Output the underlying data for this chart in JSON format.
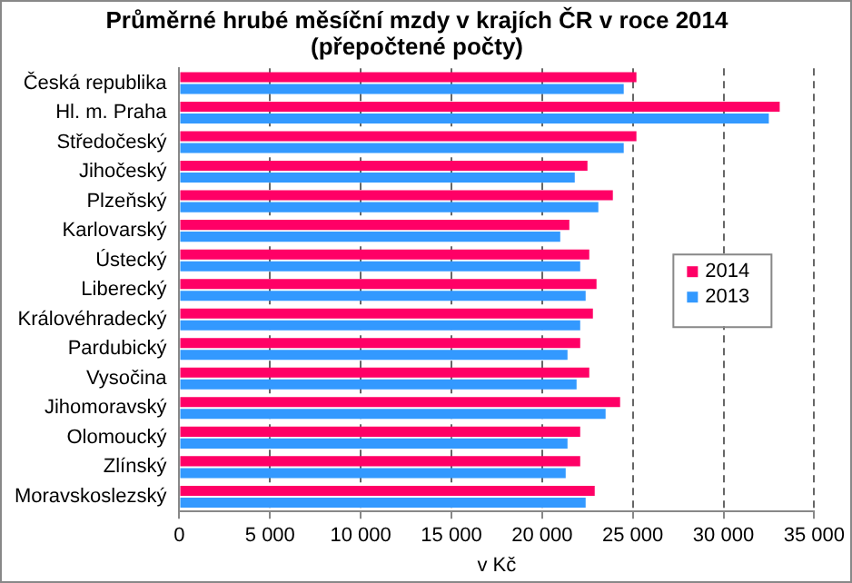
{
  "chart_data": {
    "type": "bar",
    "orientation": "horizontal",
    "title": [
      "Průměrné hrubé měsíční mzdy v krajích ČR v roce 2014",
      "(přepočtené počty)"
    ],
    "xlabel": "v Kč",
    "categories": [
      "Česká republika",
      "Hl. m. Praha",
      "Středočeský",
      "Jihočeský",
      "Plzeňský",
      "Karlovarský",
      "Ústecký",
      "Liberecký",
      "Královéhradecký",
      "Pardubický",
      "Vysočina",
      "Jihomoravský",
      "Olomoucký",
      "Zlínský",
      "Moravskoslezský"
    ],
    "series": [
      {
        "name": "2014",
        "color": "#ff0066",
        "values": [
          25200,
          33100,
          25200,
          22500,
          23900,
          21500,
          22600,
          23000,
          22800,
          22100,
          22600,
          24300,
          22100,
          22100,
          22900
        ]
      },
      {
        "name": "2013",
        "color": "#3399ff",
        "values": [
          24500,
          32500,
          24500,
          21800,
          23100,
          21000,
          22100,
          22400,
          22100,
          21400,
          21900,
          23500,
          21400,
          21300,
          22400
        ]
      }
    ],
    "xlim": [
      0,
      35000
    ],
    "xticks": [
      0,
      {
        "value": 5000,
        "label": "5 000"
      },
      {
        "value": 10000,
        "label": "10 000"
      },
      {
        "value": 15000,
        "label": "15 000"
      },
      {
        "value": 20000,
        "label": "20 000"
      },
      {
        "value": 25000,
        "label": "25 000"
      },
      {
        "value": 30000,
        "label": "30 000"
      },
      {
        "value": 35000,
        "label": "35 000"
      }
    ],
    "grid": "x",
    "line_style": "dashed",
    "legend": "right"
  }
}
